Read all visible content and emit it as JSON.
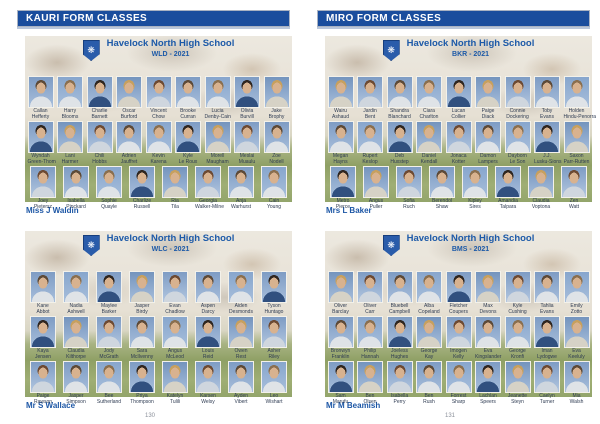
{
  "school_name": "Havelock North High School",
  "icons": {
    "school_crest_glyph": "❋"
  },
  "colors": {
    "header_bar_bg": "#1a4d9d",
    "title_blue": "#1d5aa8",
    "teacher_blue": "#1c56a5",
    "caption_text": "#2e3b52",
    "page_number_gray": "#8b909a"
  },
  "pages": [
    {
      "header": "KAURI FORM CLASSES",
      "page_number": "130",
      "blocks": [
        {
          "class_code": "WLD - 2021",
          "teacher": "Miss J Waldin",
          "rows": [
            [
              [
                "Callan",
                "Hefferty"
              ],
              [
                "Harry",
                "Blooms"
              ],
              [
                "Charlie",
                "Barnett"
              ],
              [
                "Oscar",
                "Burford"
              ],
              [
                "Vincent",
                "Chow"
              ],
              [
                "Brooke",
                "Curran"
              ],
              [
                "Lucia",
                "Denby-Cain"
              ],
              [
                "Olivia",
                "Burvill"
              ],
              [
                "Jake",
                "Brophy"
              ]
            ],
            [
              [
                "Wyndah",
                "Green-Thom"
              ],
              [
                "Lani",
                "Harmer"
              ],
              [
                "Chili",
                "Hobbs"
              ],
              [
                "Adrien",
                "Jauffret"
              ],
              [
                "Kevin",
                "Karena"
              ],
              [
                "Kyle",
                "Le Roux"
              ],
              [
                "Morell",
                "Maugham"
              ],
              [
                "Meslai",
                "Muaulu"
              ],
              [
                "Zoe",
                "Nodell"
              ]
            ],
            [
              [
                "Joey",
                "Pietersz"
              ],
              [
                "Isabella",
                "Pinckard"
              ],
              [
                "Sophie",
                "Quayle"
              ],
              [
                "Charlize",
                "Russell"
              ],
              [
                "Ria",
                "Tila"
              ],
              [
                "Georgia",
                "Walker-Milne"
              ],
              [
                "Anja",
                "Warhurst"
              ],
              [
                "Cain",
                "Young"
              ]
            ]
          ]
        },
        {
          "class_code": "WLC - 2021",
          "teacher": "Mr S Wallace",
          "rows": [
            [
              [
                "Kane",
                "Abbot"
              ],
              [
                "Nadia",
                "Ashwell"
              ],
              [
                "Maylee",
                "Barker"
              ],
              [
                "Jasper",
                "Birdy"
              ],
              [
                "Evan",
                "Chadlow"
              ],
              [
                "Aspen",
                "Darcy"
              ],
              [
                "Aiden",
                "Desmonds"
              ],
              [
                "Tyson",
                "Huntago"
              ]
            ],
            [
              [
                "Kaya",
                "Jensen"
              ],
              [
                "Claudia",
                "Kilthorpe"
              ],
              [
                "Jody",
                "McGrath"
              ],
              [
                "Sara",
                "McIlvenny"
              ],
              [
                "Angus",
                "McLeod"
              ],
              [
                "Louis",
                "Reid"
              ],
              [
                "Owen",
                "Rest"
              ],
              [
                "Asher",
                "Riley"
              ]
            ],
            [
              [
                "Paige",
                "Rawson"
              ],
              [
                "Jasper",
                "Simpson"
              ],
              [
                "Bee",
                "Sutherland"
              ],
              [
                "Priya",
                "Thompson"
              ],
              [
                "Katelyn",
                "Tulili"
              ],
              [
                "Karsen",
                "Welsy"
              ],
              [
                "Ayden",
                "Vibert"
              ],
              [
                "Leo",
                "Wishart"
              ]
            ]
          ]
        }
      ]
    },
    {
      "header": "MIRO FORM CLASSES",
      "page_number": "131",
      "blocks": [
        {
          "class_code": "BKR - 2021",
          "teacher": "Mrs L Baker",
          "rows": [
            [
              [
                "Wairu",
                "Ashaud"
              ],
              [
                "Jardin",
                "Bent"
              ],
              [
                "Shandra",
                "Blanchard"
              ],
              [
                "Ciara",
                "Charlton"
              ],
              [
                "Lucan",
                "Collier"
              ],
              [
                "Paige",
                "Diack"
              ],
              [
                "Connie",
                "Dockering"
              ],
              [
                "Toby",
                "Evans"
              ],
              [
                "Holden",
                "Hindu-Penorra"
              ]
            ],
            [
              [
                "Megan",
                "Hayns"
              ],
              [
                "Rupert",
                "Keslop"
              ],
              [
                "Deb",
                "Huxstep"
              ],
              [
                "Daniel",
                "Kendall"
              ],
              [
                "Jonaca",
                "Kotter"
              ],
              [
                "Damon",
                "Lampers"
              ],
              [
                "Dayborn",
                "Le Son"
              ],
              [
                "J.J.",
                "Lusku-Sions"
              ],
              [
                "Saxon",
                "Parr-Rutten"
              ]
            ],
            [
              [
                "Metro",
                "Pierce"
              ],
              [
                "Angus",
                "Puller"
              ],
              [
                "Sofia",
                "Ruch"
              ],
              [
                "Berendol",
                "Shaw"
              ],
              [
                "Kipley",
                "Sires"
              ],
              [
                "Amandia",
                "Talpara"
              ],
              [
                "Claudia",
                "Voptona"
              ],
              [
                "Zen",
                "Watt"
              ]
            ]
          ]
        },
        {
          "class_code": "BMS - 2021",
          "teacher": "Mr M Beamish",
          "rows": [
            [
              [
                "Oliver",
                "Barclay"
              ],
              [
                "Oliver",
                "Carr"
              ],
              [
                "Bluebell",
                "Campbell"
              ],
              [
                "Alba",
                "Copeland"
              ],
              [
                "Fletcher",
                "Coupers"
              ],
              [
                "Max",
                "Devons"
              ],
              [
                "Kyle",
                "Cushing"
              ],
              [
                "Tahlia",
                "Evans"
              ],
              [
                "Emily",
                "Zotto"
              ]
            ],
            [
              [
                "Bronwyn",
                "Franklin"
              ],
              [
                "Philip",
                "Hannah"
              ],
              [
                "Joeless",
                "Hughes"
              ],
              [
                "George",
                "Kay"
              ],
              [
                "Imogen",
                "Kelly"
              ],
              [
                "Eva",
                "Kingslander"
              ],
              [
                "George",
                "Kronfi"
              ],
              [
                "Iman",
                "Lydogwe"
              ],
              [
                "Eva",
                "Keeluly"
              ]
            ],
            [
              [
                "Sam",
                "Marufu"
              ],
              [
                "Ben",
                "Olsen"
              ],
              [
                "Isabella",
                "Perry"
              ],
              [
                "Ben",
                "Rush"
              ],
              [
                "Forrest",
                "Sharp"
              ],
              [
                "Lachlan",
                "Speers"
              ],
              [
                "Jeanette",
                "Steyn"
              ],
              [
                "Caelyn",
                "Turner"
              ],
              [
                "Mia",
                "Walsh"
              ]
            ]
          ]
        }
      ]
    }
  ]
}
